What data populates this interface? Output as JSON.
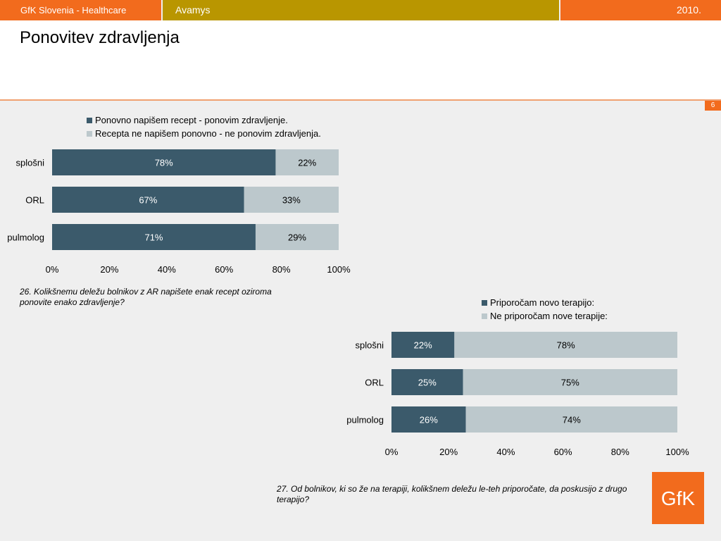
{
  "topbar": {
    "left": "GfK Slovenia - Healthcare",
    "middle": "Avamys",
    "right": "2010."
  },
  "page": {
    "title": "Ponovitev zdravljenja",
    "number": "6"
  },
  "logo": {
    "text": "GfK"
  },
  "colors": {
    "orange": "#f26b1d",
    "gold": "#b99600",
    "dark_series": "#3b5a6b",
    "light_series": "#bcc8cc"
  },
  "chart_data": [
    {
      "type": "bar",
      "stacked": true,
      "orientation": "horizontal",
      "categories": [
        "splošni",
        "ORL",
        "pulmolog"
      ],
      "series": [
        {
          "name": "Ponovno napišem recept - ponovim zdravljenje.",
          "values": [
            78,
            67,
            71
          ],
          "labels": [
            "78%",
            "67%",
            "71%"
          ]
        },
        {
          "name": "Recepta ne napišem ponovno - ne ponovim zdravljenja.",
          "values": [
            22,
            33,
            29
          ],
          "labels": [
            "22%",
            "33%",
            "29%"
          ]
        }
      ],
      "xticks": [
        "0%",
        "20%",
        "40%",
        "60%",
        "80%",
        "100%"
      ],
      "xlim": [
        0,
        100
      ],
      "legend": "top",
      "grid": false,
      "caption": "26. Kolikšnemu deležu bolnikov z AR napišete enak recept oziroma ponovite enako zdravljenje?"
    },
    {
      "type": "bar",
      "stacked": true,
      "orientation": "horizontal",
      "categories": [
        "splošni",
        "ORL",
        "pulmolog"
      ],
      "series": [
        {
          "name": "Priporočam novo terapijo:",
          "values": [
            22,
            25,
            26
          ],
          "labels": [
            "22%",
            "25%",
            "26%"
          ]
        },
        {
          "name": "Ne priporočam nove terapije:",
          "values": [
            78,
            75,
            74
          ],
          "labels": [
            "78%",
            "75%",
            "74%"
          ]
        }
      ],
      "xticks": [
        "0%",
        "20%",
        "40%",
        "60%",
        "80%",
        "100%"
      ],
      "xlim": [
        0,
        100
      ],
      "legend": "top",
      "grid": false,
      "caption": "27. Od bolnikov, ki so že na terapiji, kolikšnem deležu le-teh priporočate, da poskusijo z drugo terapijo?"
    }
  ]
}
